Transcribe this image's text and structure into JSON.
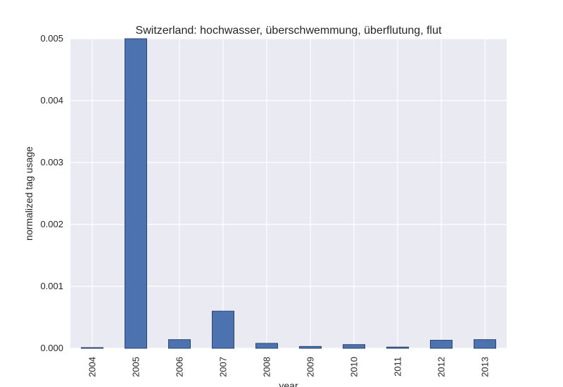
{
  "chart_data": {
    "type": "bar",
    "title": "Switzerland: hochwasser, überschwemmung, überflutung, flut",
    "xlabel": "year",
    "ylabel": "normalized tag usage",
    "categories": [
      "2004",
      "2005",
      "2006",
      "2007",
      "2008",
      "2009",
      "2010",
      "2011",
      "2012",
      "2013"
    ],
    "values": [
      5e-06,
      0.005,
      0.00014,
      0.0006,
      8e-05,
      3e-05,
      6e-05,
      2e-05,
      0.00013,
      0.00014
    ],
    "ylim": [
      0,
      0.005
    ],
    "yticks": [
      "0.000",
      "0.001",
      "0.002",
      "0.003",
      "0.004",
      "0.005"
    ],
    "grid": true,
    "legend": "none",
    "colors": {
      "bar": "#4c72b0",
      "bar_edge": "#2d4470",
      "plot_background": "#eaeaf2",
      "grid": "#ffffff"
    }
  }
}
